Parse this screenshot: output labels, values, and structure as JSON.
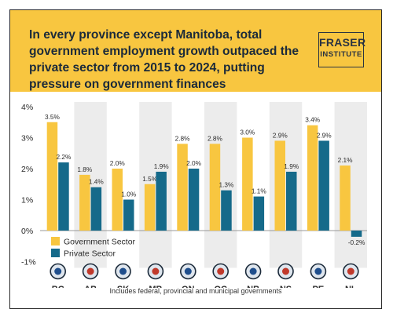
{
  "header": {
    "title": "In every province except Manitoba, total government employment growth outpaced the private sector from 2015 to 2024, putting pressure on government finances",
    "logo_top": "FRASER",
    "logo_bottom": "INSTITUTE"
  },
  "footnote": "Includes federal, provincial and municipal governments",
  "chart_data": {
    "type": "bar",
    "categories": [
      "BC",
      "AB",
      "SK",
      "MB",
      "ON",
      "QC",
      "NB",
      "NS",
      "PE",
      "NL"
    ],
    "series": [
      {
        "name": "Government Sector",
        "values": [
          3.5,
          1.8,
          2.0,
          1.5,
          2.8,
          2.8,
          3.0,
          2.9,
          3.4,
          2.1
        ],
        "labels": [
          "3.5%",
          "1.8%",
          "2.0%",
          "1.5%",
          "2.8%",
          "2.8%",
          "3.0%",
          "2.9%",
          "3.4%",
          "2.1%"
        ]
      },
      {
        "name": "Private Sector",
        "values": [
          2.2,
          1.4,
          1.0,
          1.9,
          2.0,
          1.3,
          1.1,
          1.9,
          2.9,
          -0.2
        ],
        "labels": [
          "2.2%",
          "1.4%",
          "1.0%",
          "1.9%",
          "2.0%",
          "1.3%",
          "1.1%",
          "1.9%",
          "2.9%",
          "-0.2%"
        ]
      }
    ],
    "ylim": [
      -1,
      4
    ],
    "yticks": [
      -1,
      0,
      1,
      2,
      3,
      4
    ],
    "ytick_labels": [
      "-1%",
      "0%",
      "1%",
      "2%",
      "3%",
      "4%"
    ],
    "xlabel": "",
    "ylabel": "",
    "legend_position": "bottom-left",
    "alternating_column_shading": true,
    "colors": {
      "government": "#f8c640",
      "private": "#156a8a",
      "shading": "#ececec",
      "zero_line": "#999999",
      "text": "#2b2b2b"
    },
    "flag_icons": [
      "bc-flag-icon",
      "ab-flag-icon",
      "sk-flag-icon",
      "mb-flag-icon",
      "on-flag-icon",
      "qc-flag-icon",
      "nb-flag-icon",
      "ns-flag-icon",
      "pe-flag-icon",
      "nl-flag-icon"
    ]
  }
}
